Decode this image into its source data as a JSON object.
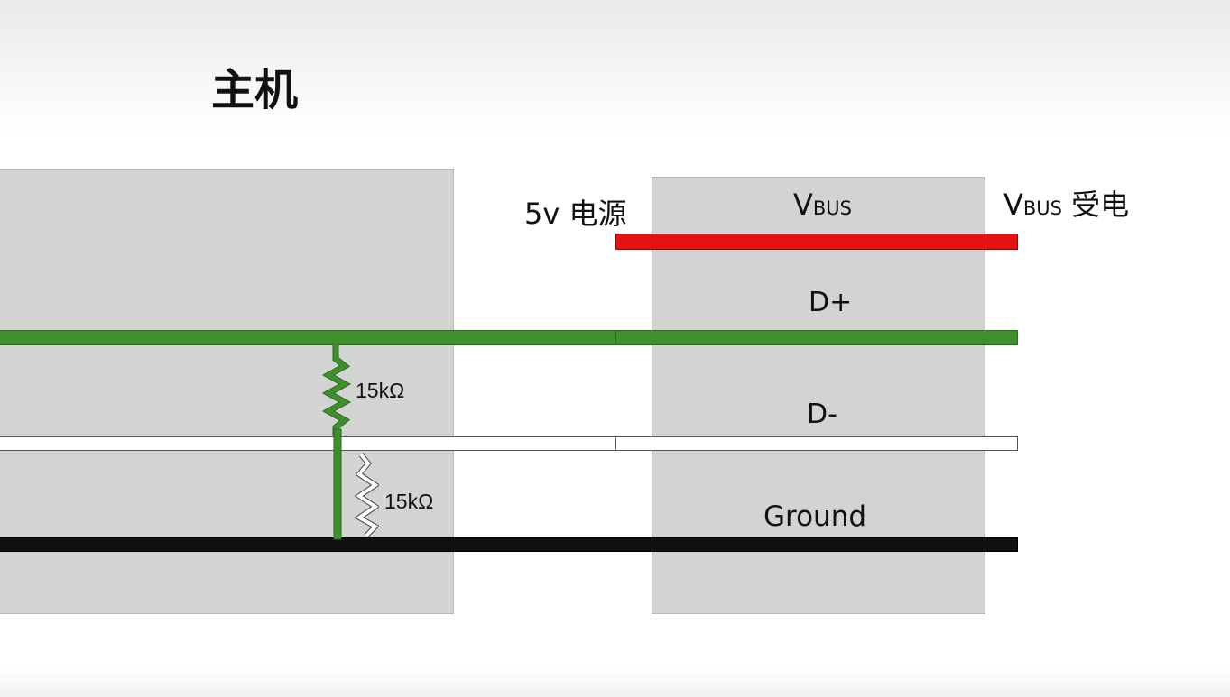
{
  "title": "主机",
  "colors": {
    "vbus": "#e31212",
    "d_plus": "#3f8f2d",
    "d_minus": "#ffffff",
    "ground": "#111111",
    "box": "#d3d3d3"
  },
  "labels": {
    "power_source": "5v 电源",
    "vbus_main": "V",
    "vbus_sub": "BUS",
    "vbus_powered_main": "V",
    "vbus_powered_sub": "BUS",
    "vbus_powered_suffix": " 受电",
    "d_plus": "D+",
    "d_minus": "D-",
    "ground": "Ground"
  },
  "resistors": [
    {
      "label": "15kΩ",
      "color": "green"
    },
    {
      "label": "15kΩ",
      "color": "white"
    }
  ]
}
